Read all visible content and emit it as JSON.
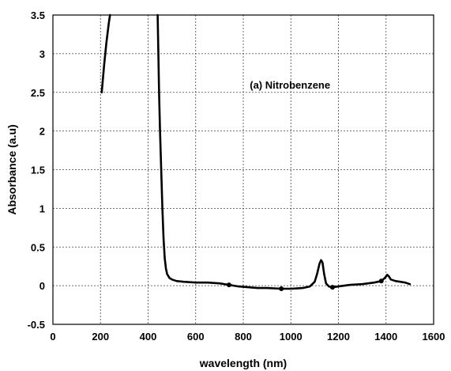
{
  "chart_data": {
    "type": "line",
    "title": "",
    "xlabel": "wavelength (nm)",
    "ylabel": "Absorbance (a.u)",
    "xlim": [
      0,
      1600
    ],
    "ylim": [
      -0.5,
      3.5
    ],
    "xticks": [
      "0",
      "200",
      "400",
      "600",
      "800",
      "1000",
      "1200",
      "1400",
      "1600"
    ],
    "yticks": [
      "-0.5",
      "0",
      "0.5",
      "1",
      "1.5",
      "2",
      "2.5",
      "3",
      "3.5"
    ],
    "grid": true,
    "annotations": [
      {
        "text": "(a) Nitrobenzene",
        "x": 1000,
        "y": 2.6
      }
    ],
    "series": [
      {
        "segments": [
          {
            "x": [
              205,
              215,
              225,
              235,
              240
            ],
            "y": [
              2.5,
              2.85,
              3.15,
              3.4,
              3.5
            ]
          },
          {
            "x": [
              440,
              443,
              446,
              450,
              455,
              460,
              465,
              470,
              475,
              480,
              490,
              500,
              520,
              550,
              600,
              650,
              700,
              740,
              780,
              820,
              860,
              900,
              960,
              1000,
              1050,
              1080,
              1100,
              1110,
              1120,
              1127,
              1133,
              1140,
              1148,
              1160,
              1175,
              1200,
              1250,
              1300,
              1350,
              1380,
              1395,
              1405,
              1412,
              1420,
              1440,
              1460,
              1480,
              1500
            ],
            "y": [
              3.5,
              3.0,
              2.5,
              2.0,
              1.5,
              1.0,
              0.6,
              0.35,
              0.22,
              0.15,
              0.1,
              0.08,
              0.06,
              0.05,
              0.04,
              0.04,
              0.03,
              0.01,
              -0.01,
              -0.02,
              -0.03,
              -0.03,
              -0.04,
              -0.04,
              -0.03,
              -0.01,
              0.05,
              0.15,
              0.28,
              0.33,
              0.3,
              0.15,
              0.03,
              -0.01,
              -0.02,
              -0.01,
              0.01,
              0.02,
              0.04,
              0.06,
              0.1,
              0.14,
              0.12,
              0.08,
              0.06,
              0.05,
              0.04,
              0.02
            ]
          }
        ],
        "markers": {
          "x": [
            740,
            960,
            1175,
            1380
          ],
          "y": [
            0.01,
            -0.04,
            -0.02,
            0.06
          ]
        }
      }
    ]
  }
}
